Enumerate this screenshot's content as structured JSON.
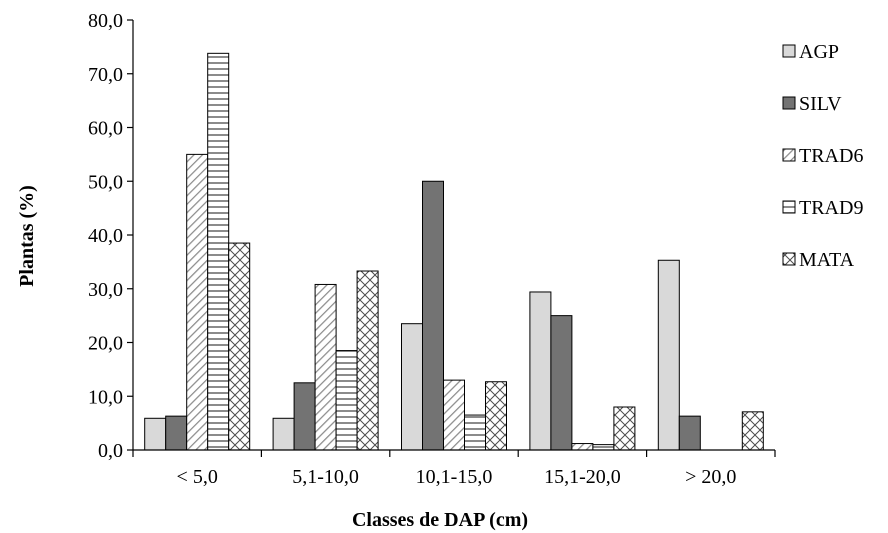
{
  "chart_data": {
    "type": "bar",
    "categories": [
      "< 5,0",
      "5,1-10,0",
      "10,1-15,0",
      "15,1-20,0",
      "> 20,0"
    ],
    "series": [
      {
        "name": "AGP",
        "values": [
          5.9,
          5.9,
          23.5,
          29.4,
          35.3
        ],
        "color": "#d9d9d9",
        "pattern": "solid"
      },
      {
        "name": "SILV",
        "values": [
          6.3,
          12.5,
          50.0,
          25.0,
          6.3
        ],
        "color": "#737373",
        "pattern": "solid"
      },
      {
        "name": "TRAD6",
        "values": [
          55.0,
          30.8,
          13.0,
          1.2,
          0.0
        ],
        "color": "#ffffff",
        "pattern": "diagonal"
      },
      {
        "name": "TRAD9",
        "values": [
          73.8,
          18.5,
          6.5,
          1.0,
          0.0
        ],
        "color": "#ffffff",
        "pattern": "horizontal"
      },
      {
        "name": "MATA",
        "values": [
          38.5,
          33.3,
          12.7,
          8.0,
          7.1
        ],
        "color": "#ffffff",
        "pattern": "crosshatch"
      }
    ],
    "xlabel": "Classes de DAP (cm)",
    "ylabel": "Plantas (%)",
    "ylim": [
      0,
      80
    ],
    "yticks": [
      "0,0",
      "10,0",
      "20,0",
      "30,0",
      "40,0",
      "50,0",
      "60,0",
      "70,0",
      "80,0"
    ],
    "grid": false,
    "legend_position": "right"
  }
}
